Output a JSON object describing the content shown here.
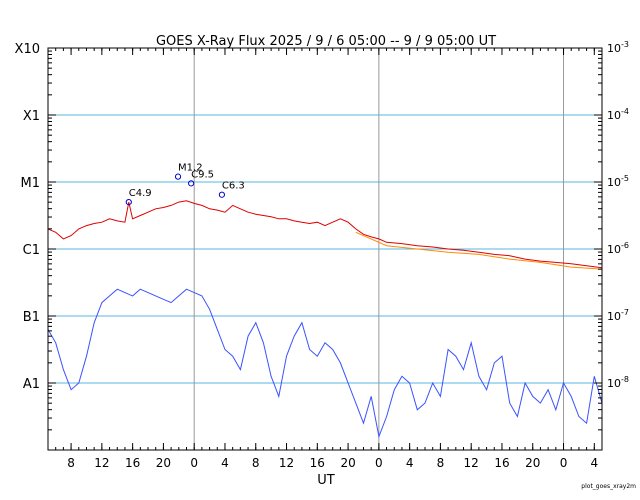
{
  "chart_data": {
    "type": "line",
    "title": "GOES X-Ray Flux   2025 /  9 /  6   05:00 --  9 /  9   05:00   UT",
    "xlabel": "UT",
    "footer": "plot_goes_xray2m",
    "x_range_hours": [
      0,
      72
    ],
    "x_ticks": [
      {
        "h": 3,
        "label": "8"
      },
      {
        "h": 7,
        "label": "12"
      },
      {
        "h": 11,
        "label": "16"
      },
      {
        "h": 15,
        "label": "20"
      },
      {
        "h": 19,
        "label": "0"
      },
      {
        "h": 23,
        "label": "4"
      },
      {
        "h": 27,
        "label": "8"
      },
      {
        "h": 31,
        "label": "12"
      },
      {
        "h": 35,
        "label": "16"
      },
      {
        "h": 39,
        "label": "20"
      },
      {
        "h": 43,
        "label": "0"
      },
      {
        "h": 47,
        "label": "4"
      },
      {
        "h": 51,
        "label": "8"
      },
      {
        "h": 55,
        "label": "12"
      },
      {
        "h": 59,
        "label": "16"
      },
      {
        "h": 63,
        "label": "20"
      },
      {
        "h": 67,
        "label": "0"
      },
      {
        "h": 71,
        "label": "4"
      }
    ],
    "day_boundaries_hours": [
      19,
      43,
      67
    ],
    "y_scale": "log",
    "y_range_log": [
      -9,
      -3
    ],
    "y_left_labels": [
      {
        "exp": -3,
        "label": "X10"
      },
      {
        "exp": -4,
        "label": "X1"
      },
      {
        "exp": -5,
        "label": "M1"
      },
      {
        "exp": -6,
        "label": "C1"
      },
      {
        "exp": -7,
        "label": "B1"
      },
      {
        "exp": -8,
        "label": "A1"
      }
    ],
    "y_right_labels": [
      {
        "exp": -3,
        "label": "10-3"
      },
      {
        "exp": -4,
        "label": "10-4"
      },
      {
        "exp": -5,
        "label": "10-5"
      },
      {
        "exp": -6,
        "label": "10-6"
      },
      {
        "exp": -7,
        "label": "10-7"
      },
      {
        "exp": -8,
        "label": "10-8"
      }
    ],
    "annotations": [
      {
        "h": 10.5,
        "log": -5.3,
        "label": "C4.9"
      },
      {
        "h": 16.9,
        "log": -4.92,
        "label": "M1.2"
      },
      {
        "h": 18.6,
        "log": -5.02,
        "label": "C9.5"
      },
      {
        "h": 22.6,
        "log": -5.19,
        "label": "C6.3"
      }
    ],
    "series": [
      {
        "color": "#e00000",
        "points": [
          [
            0,
            -5.7
          ],
          [
            1,
            -5.75
          ],
          [
            2,
            -5.85
          ],
          [
            3,
            -5.8
          ],
          [
            4,
            -5.7
          ],
          [
            5,
            -5.65
          ],
          [
            6,
            -5.62
          ],
          [
            7,
            -5.6
          ],
          [
            8,
            -5.55
          ],
          [
            9,
            -5.58
          ],
          [
            10,
            -5.6
          ],
          [
            10.5,
            -5.3
          ],
          [
            11,
            -5.55
          ],
          [
            12,
            -5.5
          ],
          [
            13,
            -5.45
          ],
          [
            14,
            -5.4
          ],
          [
            15,
            -5.38
          ],
          [
            16,
            -5.35
          ],
          [
            17,
            -5.3
          ],
          [
            18,
            -5.28
          ],
          [
            19,
            -5.32
          ],
          [
            20,
            -5.35
          ],
          [
            21,
            -5.4
          ],
          [
            22,
            -5.42
          ],
          [
            23,
            -5.45
          ],
          [
            24,
            -5.35
          ],
          [
            25,
            -5.4
          ],
          [
            26,
            -5.45
          ],
          [
            27,
            -5.48
          ],
          [
            28,
            -5.5
          ],
          [
            29,
            -5.52
          ],
          [
            30,
            -5.55
          ],
          [
            31,
            -5.55
          ],
          [
            32,
            -5.58
          ],
          [
            33,
            -5.6
          ],
          [
            34,
            -5.62
          ],
          [
            35,
            -5.6
          ],
          [
            36,
            -5.65
          ],
          [
            37,
            -5.6
          ],
          [
            38,
            -5.55
          ],
          [
            39,
            -5.6
          ],
          [
            40,
            -5.7
          ],
          [
            41,
            -5.78
          ],
          [
            42,
            -5.82
          ],
          [
            43,
            -5.85
          ],
          [
            44,
            -5.9
          ],
          [
            46,
            -5.92
          ],
          [
            48,
            -5.95
          ],
          [
            50,
            -5.97
          ],
          [
            52,
            -6.0
          ],
          [
            54,
            -6.02
          ],
          [
            56,
            -6.05
          ],
          [
            58,
            -6.08
          ],
          [
            60,
            -6.1
          ],
          [
            62,
            -6.15
          ],
          [
            64,
            -6.18
          ],
          [
            66,
            -6.2
          ],
          [
            68,
            -6.22
          ],
          [
            70,
            -6.25
          ],
          [
            72,
            -6.28
          ]
        ]
      },
      {
        "color": "#ff8c00",
        "points": [
          [
            40,
            -5.75
          ],
          [
            44,
            -5.95
          ],
          [
            48,
            -6.0
          ],
          [
            52,
            -6.05
          ],
          [
            56,
            -6.08
          ],
          [
            60,
            -6.15
          ],
          [
            64,
            -6.2
          ],
          [
            68,
            -6.27
          ],
          [
            72,
            -6.3
          ]
        ]
      },
      {
        "color": "#3a52ff",
        "points": [
          [
            0,
            -7.2
          ],
          [
            1,
            -7.4
          ],
          [
            2,
            -7.8
          ],
          [
            3,
            -8.1
          ],
          [
            4,
            -8.0
          ],
          [
            5,
            -7.6
          ],
          [
            6,
            -7.1
          ],
          [
            7,
            -6.8
          ],
          [
            8,
            -6.7
          ],
          [
            9,
            -6.6
          ],
          [
            10,
            -6.65
          ],
          [
            11,
            -6.7
          ],
          [
            12,
            -6.6
          ],
          [
            13,
            -6.65
          ],
          [
            14,
            -6.7
          ],
          [
            15,
            -6.75
          ],
          [
            16,
            -6.8
          ],
          [
            17,
            -6.7
          ],
          [
            18,
            -6.6
          ],
          [
            19,
            -6.65
          ],
          [
            20,
            -6.7
          ],
          [
            21,
            -6.9
          ],
          [
            22,
            -7.2
          ],
          [
            23,
            -7.5
          ],
          [
            24,
            -7.6
          ],
          [
            25,
            -7.8
          ],
          [
            26,
            -7.3
          ],
          [
            27,
            -7.1
          ],
          [
            28,
            -7.4
          ],
          [
            29,
            -7.9
          ],
          [
            30,
            -8.2
          ],
          [
            31,
            -7.6
          ],
          [
            32,
            -7.3
          ],
          [
            33,
            -7.1
          ],
          [
            34,
            -7.5
          ],
          [
            35,
            -7.6
          ],
          [
            36,
            -7.4
          ],
          [
            37,
            -7.5
          ],
          [
            38,
            -7.7
          ],
          [
            39,
            -8.0
          ],
          [
            40,
            -8.3
          ],
          [
            41,
            -8.6
          ],
          [
            42,
            -8.2
          ],
          [
            43,
            -8.8
          ],
          [
            44,
            -8.5
          ],
          [
            45,
            -8.1
          ],
          [
            46,
            -7.9
          ],
          [
            47,
            -8.0
          ],
          [
            48,
            -8.4
          ],
          [
            49,
            -8.3
          ],
          [
            50,
            -8.0
          ],
          [
            51,
            -8.2
          ],
          [
            52,
            -7.5
          ],
          [
            53,
            -7.6
          ],
          [
            54,
            -7.8
          ],
          [
            55,
            -7.4
          ],
          [
            56,
            -7.9
          ],
          [
            57,
            -8.1
          ],
          [
            58,
            -7.7
          ],
          [
            59,
            -7.6
          ],
          [
            60,
            -8.3
          ],
          [
            61,
            -8.5
          ],
          [
            62,
            -8.0
          ],
          [
            63,
            -8.2
          ],
          [
            64,
            -8.3
          ],
          [
            65,
            -8.1
          ],
          [
            66,
            -8.4
          ],
          [
            67,
            -8.0
          ],
          [
            68,
            -8.2
          ],
          [
            69,
            -8.5
          ],
          [
            70,
            -8.6
          ],
          [
            71,
            -7.9
          ],
          [
            72,
            -8.3
          ]
        ]
      }
    ]
  }
}
